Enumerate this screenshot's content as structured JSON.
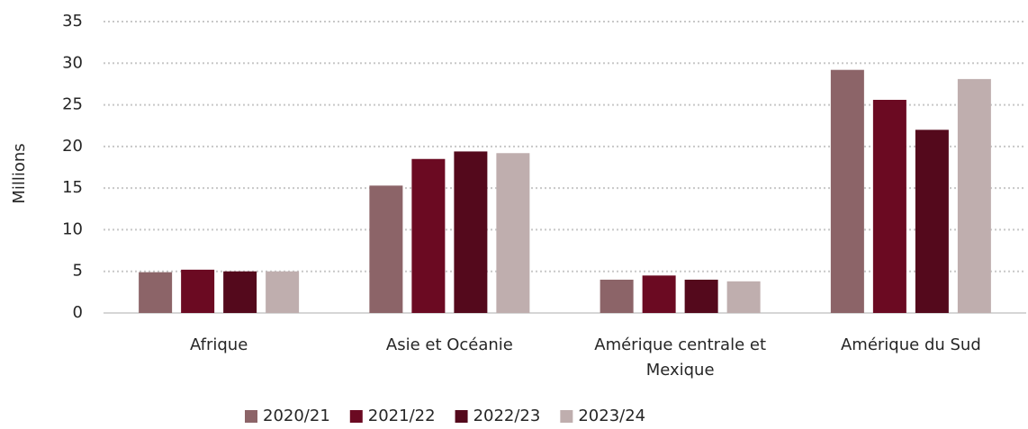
{
  "chart_data": {
    "type": "bar",
    "y_axis_label": "Millions",
    "categories": [
      "Afrique",
      "Asie et Océanie",
      "Amérique centrale et Mexique",
      "Amérique du Sud"
    ],
    "series": [
      {
        "name": "2020/21",
        "color": "#8c6468",
        "values": [
          4.9,
          15.3,
          4.0,
          29.2
        ]
      },
      {
        "name": "2021/22",
        "color": "#6b0a22",
        "values": [
          5.2,
          18.5,
          4.5,
          25.6
        ]
      },
      {
        "name": "2022/23",
        "color": "#54091c",
        "values": [
          5.0,
          19.4,
          4.0,
          22.0
        ]
      },
      {
        "name": "2023/24",
        "color": "#bfaeae",
        "values": [
          5.0,
          19.2,
          3.8,
          28.1
        ]
      }
    ],
    "ylim": [
      0,
      35
    ],
    "yticks": [
      0,
      5,
      10,
      15,
      20,
      25,
      30,
      35
    ],
    "grid": true,
    "legend": "bottom"
  }
}
